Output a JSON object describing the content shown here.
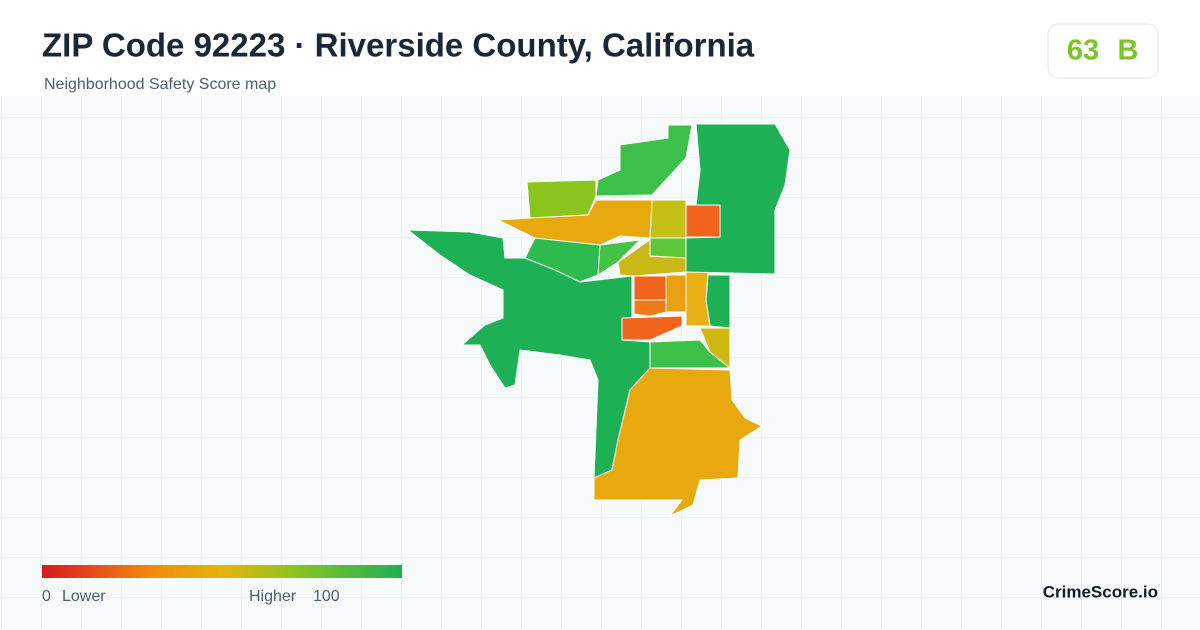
{
  "header": {
    "title": "ZIP Code 92223 · Riverside County, California",
    "subtitle": "Neighborhood Safety Score map"
  },
  "score": {
    "value": 63,
    "grade": "B"
  },
  "legend": {
    "min": 0,
    "min_label": "Lower",
    "max_label": "Higher",
    "max": 100
  },
  "brand": "CrimeScore.io"
}
